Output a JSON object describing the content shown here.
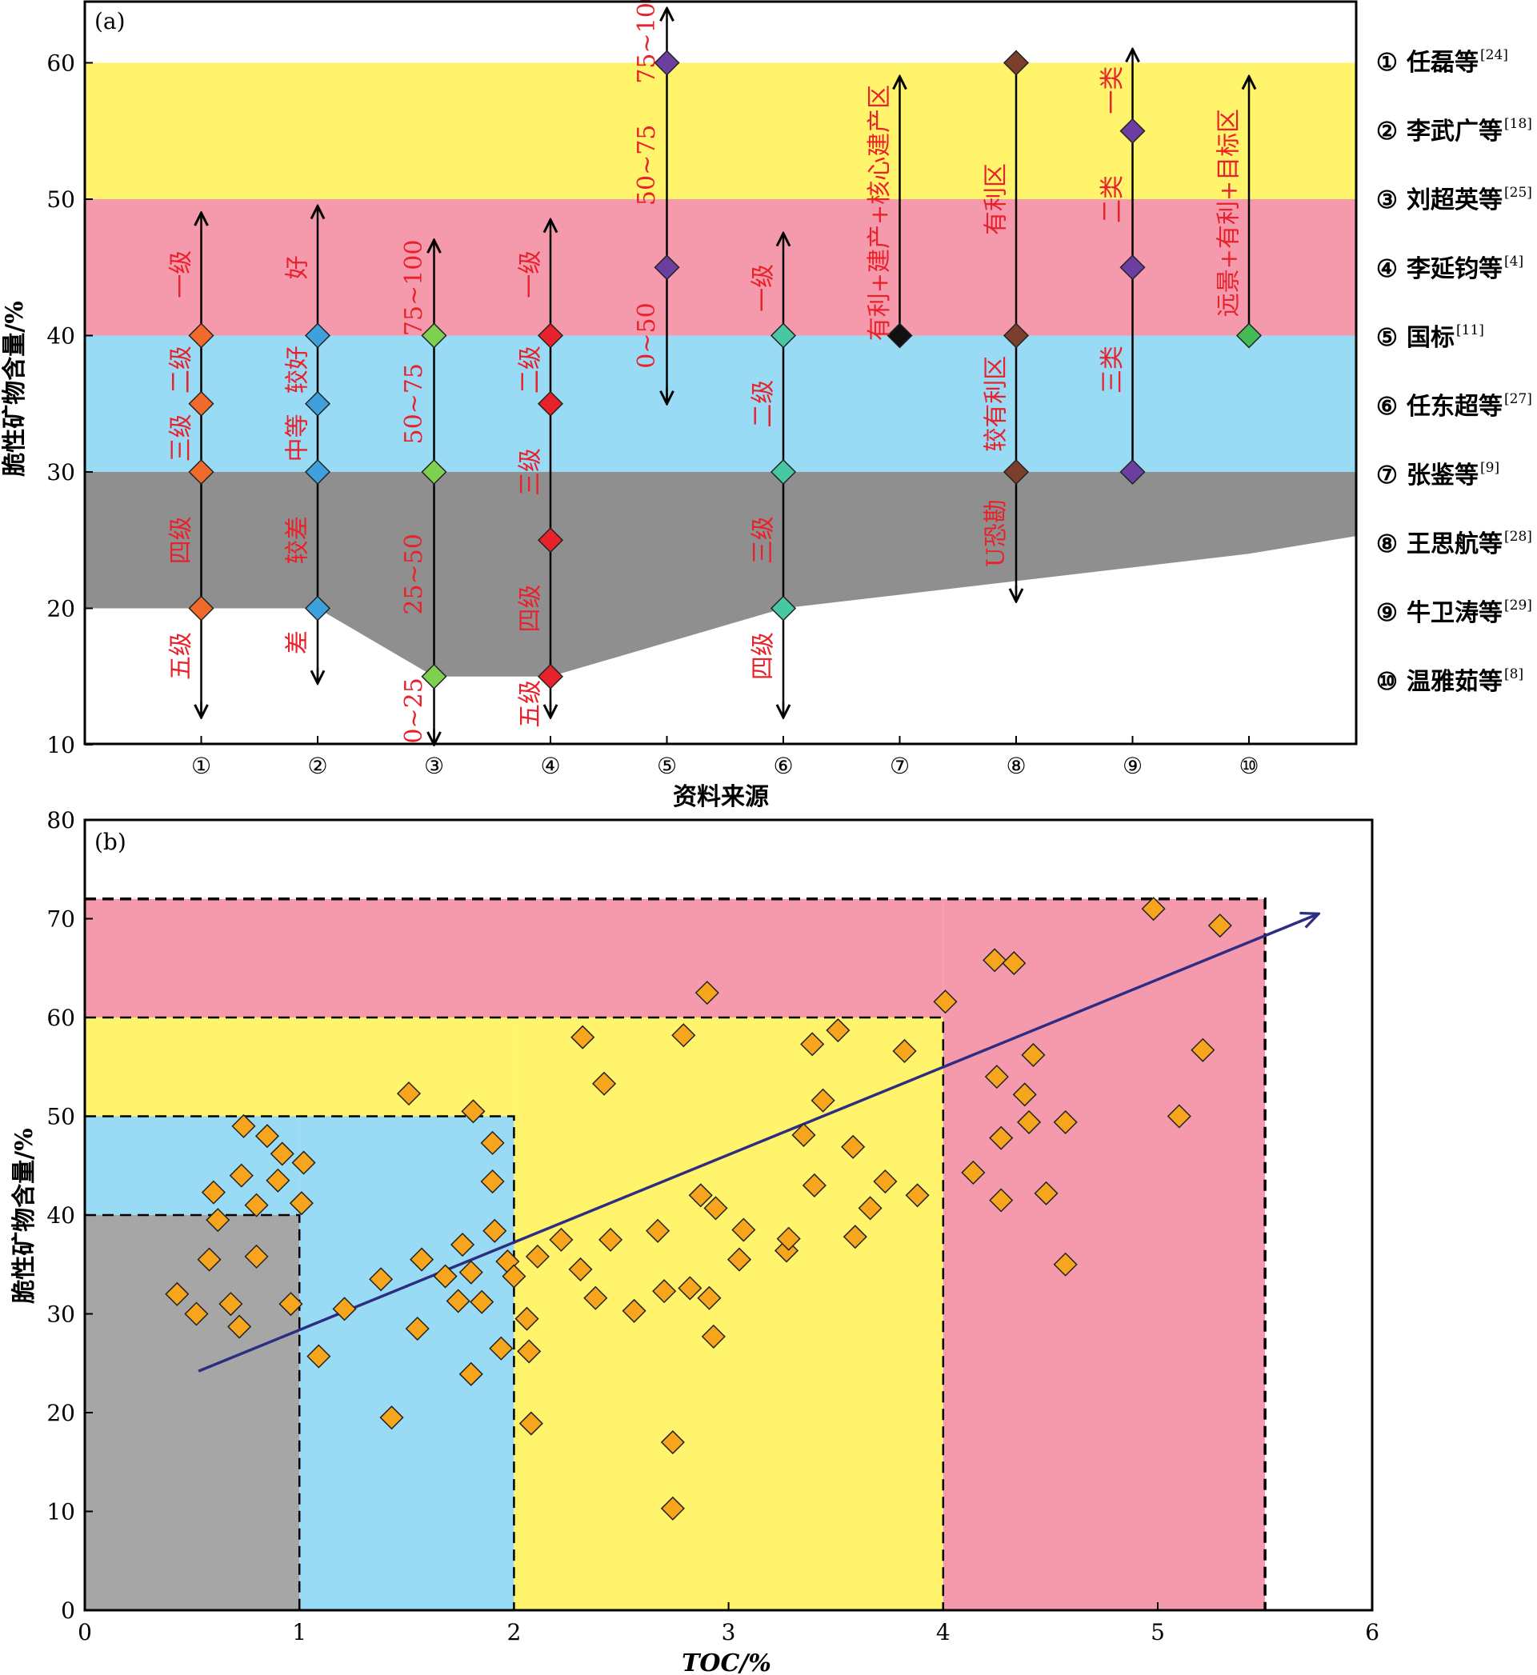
{
  "panel_a": {
    "label": "(a)",
    "ylabel": "脆性矿物含量/%",
    "xlabel": "资料来源",
    "yticks": [
      "10",
      "20",
      "30",
      "40",
      "50",
      "60"
    ],
    "xticks": [
      "①",
      "②",
      "③",
      "④",
      "⑤",
      "⑥",
      "⑦",
      "⑧",
      "⑨",
      "⑩"
    ],
    "legend": [
      {
        "mark": "①",
        "name": "任磊等",
        "ref": "[24]"
      },
      {
        "mark": "②",
        "name": "李武广等",
        "ref": "[18]"
      },
      {
        "mark": "③",
        "name": "刘超英等",
        "ref": "[25]"
      },
      {
        "mark": "④",
        "name": "李延钧等",
        "ref": "[4]"
      },
      {
        "mark": "⑤",
        "name": "国标",
        "ref": "[11]"
      },
      {
        "mark": "⑥",
        "name": "任东超等",
        "ref": "[27]"
      },
      {
        "mark": "⑦",
        "name": "张鉴等",
        "ref": "[9]"
      },
      {
        "mark": "⑧",
        "name": "王思航等",
        "ref": "[28]"
      },
      {
        "mark": "⑨",
        "name": "牛卫涛等",
        "ref": "[29]"
      },
      {
        "mark": "⑩",
        "name": "温雅茹等",
        "ref": "[8]"
      }
    ],
    "grade_labels": [
      {
        "text": "一级",
        "source": 1,
        "y": 44.5,
        "upright": false
      },
      {
        "text": "二级",
        "source": 1,
        "y": 37.5,
        "upright": false
      },
      {
        "text": "三级",
        "source": 1,
        "y": 32.5,
        "upright": false
      },
      {
        "text": "四级",
        "source": 1,
        "y": 25,
        "upright": false
      },
      {
        "text": "五级",
        "source": 1,
        "y": 16.5,
        "upright": true
      },
      {
        "text": "好",
        "source": 2,
        "y": 45,
        "upright": false
      },
      {
        "text": "中等",
        "source": 2,
        "y": 32.5,
        "upright": false
      },
      {
        "text": "较好",
        "source": 2,
        "y": 37.5,
        "upright": false
      },
      {
        "text": "较差",
        "source": 2,
        "y": 25,
        "upright": false
      },
      {
        "text": "差",
        "source": 2,
        "y": 17.5,
        "upright": false
      },
      {
        "text": "75~100",
        "source": 3,
        "y": 43.5,
        "upright": false
      },
      {
        "text": "50~75",
        "source": 3,
        "y": 35,
        "upright": false
      },
      {
        "text": "25~50",
        "source": 3,
        "y": 22.5,
        "upright": false
      },
      {
        "text": "0~25",
        "source": 3,
        "y": 12.5,
        "upright": false
      },
      {
        "text": "一级",
        "source": 4,
        "y": 44.5,
        "upright": false
      },
      {
        "text": "二级",
        "source": 4,
        "y": 37.5,
        "upright": false
      },
      {
        "text": "三级",
        "source": 4,
        "y": 30,
        "upright": false
      },
      {
        "text": "四级",
        "source": 4,
        "y": 20,
        "upright": false
      },
      {
        "text": "五级",
        "source": 4,
        "y": 13,
        "upright": true
      },
      {
        "text": "75~100",
        "source": 5,
        "y": 62,
        "upright": false
      },
      {
        "text": "50~75",
        "source": 5,
        "y": 52.5,
        "upright": false
      },
      {
        "text": "0~50",
        "source": 5,
        "y": 40,
        "upright": false
      },
      {
        "text": "一级",
        "source": 6,
        "y": 43.5,
        "upright": false
      },
      {
        "text": "二级",
        "source": 6,
        "y": 35,
        "upright": false
      },
      {
        "text": "三级",
        "source": 6,
        "y": 25,
        "upright": false
      },
      {
        "text": "四级",
        "source": 6,
        "y": 16.5,
        "upright": true
      },
      {
        "text": "有利+建产+核心建产区",
        "source": 7,
        "y": 49,
        "upright": false
      },
      {
        "text": "有利区",
        "source": 8,
        "y": 50,
        "upright": false
      },
      {
        "text": "较有利区",
        "source": 8,
        "y": 35,
        "upright": false
      },
      {
        "text": "U恐勘",
        "source": 8,
        "y": 25.5,
        "upright": false
      },
      {
        "text": "一类",
        "source": 9,
        "y": 58,
        "upright": false
      },
      {
        "text": "二类",
        "source": 9,
        "y": 50,
        "upright": false
      },
      {
        "text": "三类",
        "source": 9,
        "y": 37.5,
        "upright": false
      },
      {
        "text": "远景+有利+目标区",
        "source": 10,
        "y": 49,
        "upright": false
      }
    ]
  },
  "panel_b": {
    "label": "(b)",
    "ylabel": "脆性矿物含量/%",
    "xlabel": "TOC/%",
    "yticks": [
      "0",
      "10",
      "20",
      "30",
      "40",
      "50",
      "60",
      "70",
      "80"
    ],
    "xticks": [
      "0",
      "1",
      "2",
      "3",
      "4",
      "5",
      "6"
    ]
  },
  "colors": {
    "yellow": "#fff46c",
    "pink": "#f59aad",
    "blue": "#99dbf5",
    "gray_a": "#8f8f8f",
    "gray_b": "#a6a6a6",
    "grade_text": "#e8212b",
    "orange": "#f7a51c",
    "trend": "#2d2e83"
  },
  "chart_data": [
    {
      "type": "scatter",
      "panel": "a",
      "xlabel": "资料来源",
      "ylabel": "脆性矿物含量/%",
      "ylim": [
        10,
        64
      ],
      "bands": [
        {
          "from": 50,
          "to": 60,
          "color": "#fff46c"
        },
        {
          "from": 40,
          "to": 50,
          "color": "#f59aad"
        },
        {
          "from": 30,
          "to": 40,
          "color": "#99dbf5"
        }
      ],
      "gray_lower_boundary": [
        [
          0,
          20
        ],
        [
          1,
          20
        ],
        [
          2,
          20
        ],
        [
          3,
          15
        ],
        [
          4,
          15
        ],
        [
          5,
          17.5
        ],
        [
          6,
          20
        ],
        [
          7,
          21
        ],
        [
          8,
          22
        ],
        [
          9,
          23
        ],
        [
          10,
          24
        ],
        [
          11,
          25.3
        ]
      ],
      "sources": [
        {
          "x": 1,
          "color": "#f26a2b",
          "points": [
            20,
            30,
            35,
            40
          ],
          "line": [
            12,
            49
          ]
        },
        {
          "x": 2,
          "color": "#3ea1dc",
          "points": [
            20,
            30,
            35,
            40
          ],
          "line": [
            14.5,
            49.5
          ]
        },
        {
          "x": 3,
          "color": "#7ed04f",
          "points": [
            15,
            30,
            40
          ],
          "line": [
            10,
            47
          ]
        },
        {
          "x": 4,
          "color": "#e8212b",
          "points": [
            15,
            25,
            35,
            40
          ],
          "line": [
            12,
            48.5
          ]
        },
        {
          "x": 5,
          "color": "#6b3fa0",
          "points": [
            45,
            60
          ],
          "line": [
            35,
            64
          ]
        },
        {
          "x": 6,
          "color": "#47c7a2",
          "points": [
            20,
            30,
            40
          ],
          "line": [
            12,
            47.5
          ]
        },
        {
          "x": 7,
          "color": "#111111",
          "points": [
            40
          ],
          "line": [
            40,
            59
          ]
        },
        {
          "x": 8,
          "color": "#7b3f2b",
          "points": [
            30,
            40,
            60
          ],
          "line": [
            20.5,
            60
          ]
        },
        {
          "x": 9,
          "color": "#6b3fa0",
          "points": [
            30,
            45,
            55
          ],
          "line": [
            30,
            61
          ]
        },
        {
          "x": 10,
          "color": "#44bb55",
          "points": [
            40
          ],
          "line": [
            40,
            59
          ]
        }
      ]
    },
    {
      "type": "scatter",
      "panel": "b",
      "xlabel": "TOC/%",
      "ylabel": "脆性矿物含量/%",
      "xlim": [
        0,
        6
      ],
      "ylim": [
        0,
        80
      ],
      "regions": [
        {
          "x": [
            0,
            1
          ],
          "y": [
            0,
            40
          ],
          "color": "#a6a6a6"
        },
        {
          "x": [
            1,
            2
          ],
          "y": [
            0,
            50
          ],
          "color": "#99dbf5"
        },
        {
          "x": [
            0,
            1
          ],
          "y": [
            40,
            50
          ],
          "color": "#99dbf5"
        },
        {
          "x": [
            2,
            4
          ],
          "y": [
            0,
            60
          ],
          "color": "#fff46c"
        },
        {
          "x": [
            0,
            2
          ],
          "y": [
            50,
            60
          ],
          "color": "#fff46c"
        },
        {
          "x": [
            4,
            5.5
          ],
          "y": [
            0,
            72
          ],
          "color": "#f59aad"
        },
        {
          "x": [
            0,
            4
          ],
          "y": [
            60,
            72
          ],
          "color": "#f59aad"
        }
      ],
      "trend": {
        "from": [
          0.53,
          24.2
        ],
        "to": [
          5.75,
          70.5
        ]
      },
      "points": [
        [
          0.43,
          32
        ],
        [
          0.52,
          30
        ],
        [
          0.58,
          35.5
        ],
        [
          0.6,
          42.3
        ],
        [
          0.62,
          39.5
        ],
        [
          0.68,
          31
        ],
        [
          0.72,
          28.7
        ],
        [
          0.73,
          44
        ],
        [
          0.74,
          49
        ],
        [
          0.8,
          41
        ],
        [
          0.8,
          35.8
        ],
        [
          0.85,
          48
        ],
        [
          0.9,
          43.5
        ],
        [
          0.92,
          46.2
        ],
        [
          0.96,
          31
        ],
        [
          1.01,
          41.2
        ],
        [
          1.02,
          45.3
        ],
        [
          1.09,
          25.7
        ],
        [
          1.21,
          30.5
        ],
        [
          1.38,
          33.5
        ],
        [
          1.43,
          19.5
        ],
        [
          1.51,
          52.3
        ],
        [
          1.55,
          28.5
        ],
        [
          1.57,
          35.5
        ],
        [
          1.68,
          33.8
        ],
        [
          1.74,
          31.3
        ],
        [
          1.76,
          37
        ],
        [
          1.8,
          34.2
        ],
        [
          1.8,
          23.9
        ],
        [
          1.81,
          50.5
        ],
        [
          1.85,
          31.2
        ],
        [
          1.9,
          47.3
        ],
        [
          1.9,
          43.4
        ],
        [
          1.91,
          38.4
        ],
        [
          1.94,
          26.5
        ],
        [
          1.97,
          35.3
        ],
        [
          2.0,
          33.8
        ],
        [
          2.06,
          29.5
        ],
        [
          2.07,
          26.2
        ],
        [
          2.08,
          18.9
        ],
        [
          2.11,
          35.8
        ],
        [
          2.22,
          37.5
        ],
        [
          2.31,
          34.5
        ],
        [
          2.32,
          58
        ],
        [
          2.38,
          31.6
        ],
        [
          2.42,
          53.3
        ],
        [
          2.45,
          37.5
        ],
        [
          2.56,
          30.3
        ],
        [
          2.67,
          38.4
        ],
        [
          2.7,
          32.3
        ],
        [
          2.74,
          17
        ],
        [
          2.74,
          10.3
        ],
        [
          2.79,
          58.2
        ],
        [
          2.82,
          32.6
        ],
        [
          2.87,
          42
        ],
        [
          2.9,
          62.5
        ],
        [
          2.91,
          31.6
        ],
        [
          2.93,
          27.7
        ],
        [
          2.94,
          40.7
        ],
        [
          3.05,
          35.5
        ],
        [
          3.07,
          38.5
        ],
        [
          3.27,
          36.4
        ],
        [
          3.28,
          37.6
        ],
        [
          3.35,
          48.1
        ],
        [
          3.39,
          57.3
        ],
        [
          3.4,
          43
        ],
        [
          3.44,
          51.6
        ],
        [
          3.51,
          58.7
        ],
        [
          3.58,
          46.9
        ],
        [
          3.59,
          37.8
        ],
        [
          3.66,
          40.7
        ],
        [
          3.73,
          43.4
        ],
        [
          3.82,
          56.6
        ],
        [
          3.88,
          42
        ],
        [
          4.01,
          61.6
        ],
        [
          4.14,
          44.3
        ],
        [
          4.24,
          65.8
        ],
        [
          4.25,
          54
        ],
        [
          4.27,
          47.8
        ],
        [
          4.27,
          41.5
        ],
        [
          4.33,
          65.5
        ],
        [
          4.38,
          52.2
        ],
        [
          4.4,
          49.4
        ],
        [
          4.42,
          56.2
        ],
        [
          4.48,
          42.2
        ],
        [
          4.57,
          49.4
        ],
        [
          4.57,
          35
        ],
        [
          4.98,
          71
        ],
        [
          5.1,
          50
        ],
        [
          5.21,
          56.7
        ],
        [
          5.29,
          69.3
        ]
      ]
    }
  ]
}
